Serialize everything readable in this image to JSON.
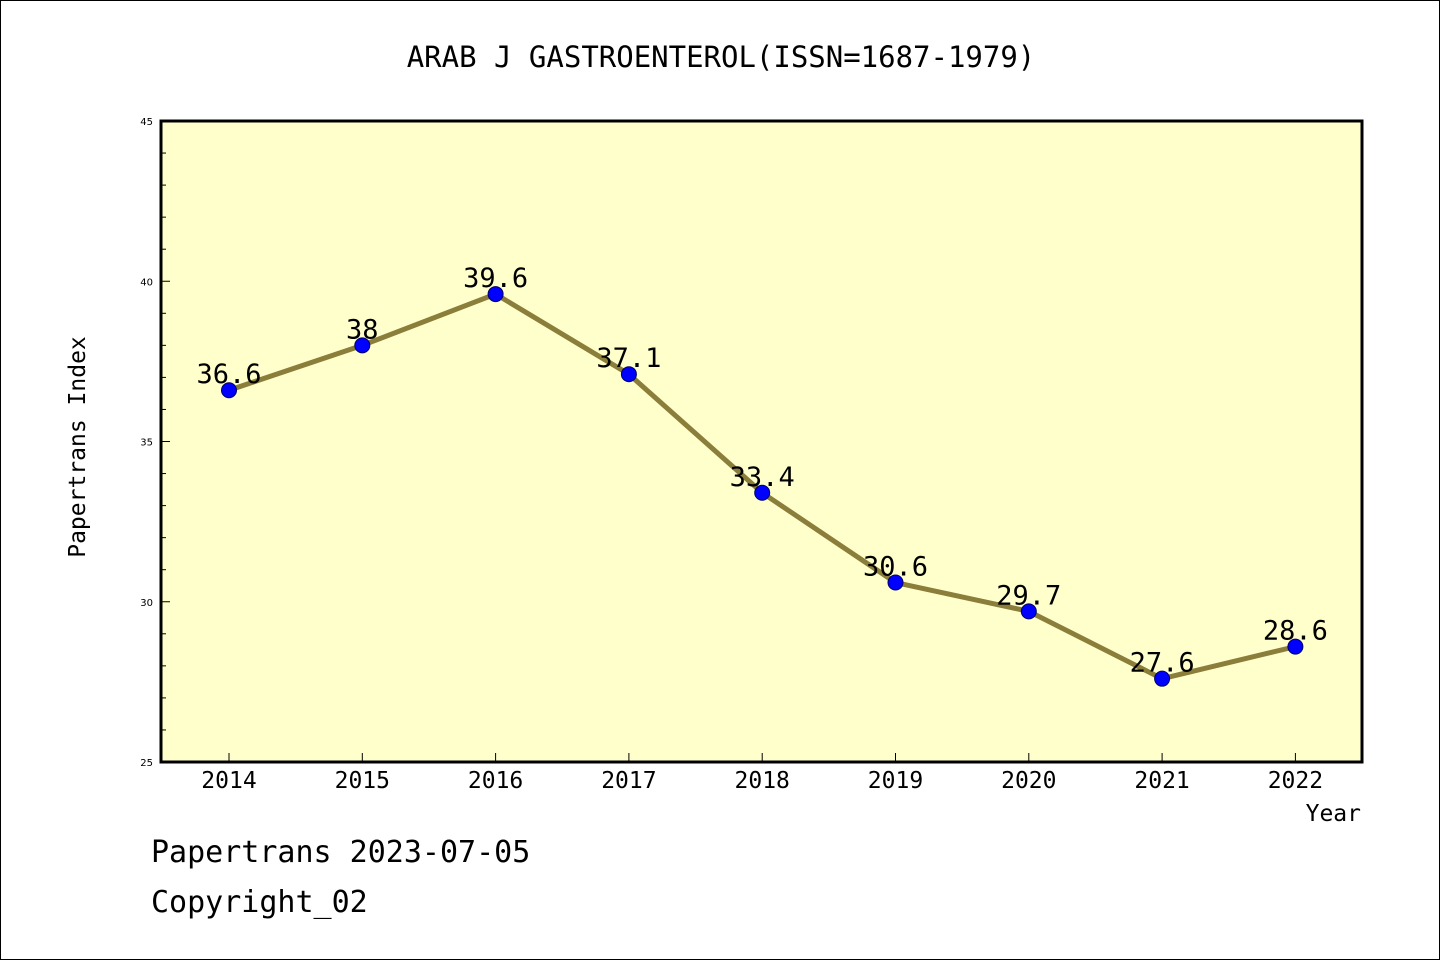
{
  "chart_data": {
    "type": "line",
    "title": "ARAB J GASTROENTEROL(ISSN=1687-1979)",
    "xlabel": "Year",
    "ylabel": "Papertrans Index",
    "categories": [
      "2014",
      "2015",
      "2016",
      "2017",
      "2018",
      "2019",
      "2020",
      "2021",
      "2022"
    ],
    "series": [
      {
        "values": [
          36.6,
          38,
          39.6,
          37.1,
          33.4,
          30.6,
          29.7,
          27.6,
          28.6
        ],
        "labels": [
          "36.6",
          "38",
          "39.6",
          "37.1",
          "33.4",
          "30.6",
          "29.7",
          "27.6",
          "28.6"
        ]
      }
    ],
    "ylim": [
      25,
      45
    ],
    "yticks": [
      "25",
      "30",
      "35",
      "40",
      "45"
    ],
    "grid": false,
    "legend": "none"
  },
  "colors": {
    "plot_background": "#ffffcc",
    "line": "#8b7d3a",
    "marker": "#0000ff",
    "frame": "#000000"
  },
  "footer": {
    "line1": "Papertrans 2023-07-05",
    "line2": "Copyright_02"
  }
}
